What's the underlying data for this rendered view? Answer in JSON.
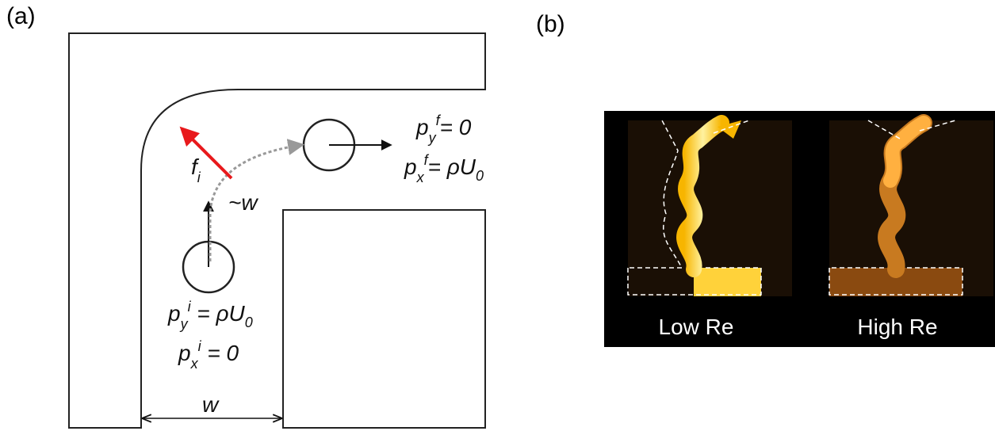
{
  "panel_a": {
    "label": "(a)",
    "force": {
      "base": "f",
      "sub": "i"
    },
    "distance": "~w",
    "width": "w",
    "final": {
      "py": {
        "base": "p",
        "sub": "y",
        "sup": "f",
        "rhs": "= 0"
      },
      "px": {
        "base": "p",
        "sub": "x",
        "sup": "f",
        "rhs": "= ρU",
        "rhs_sub": "0"
      }
    },
    "initial": {
      "py": {
        "base": "p",
        "sub": "y",
        "sup": "i",
        "rhs": " = ρU",
        "rhs_sub": "0"
      },
      "px": {
        "base": "p",
        "sub": "x",
        "sup": "i",
        "rhs": " = 0"
      }
    }
  },
  "panel_b": {
    "label": "(b)",
    "images": [
      {
        "caption": "Low Re"
      },
      {
        "caption": "High Re"
      }
    ]
  }
}
